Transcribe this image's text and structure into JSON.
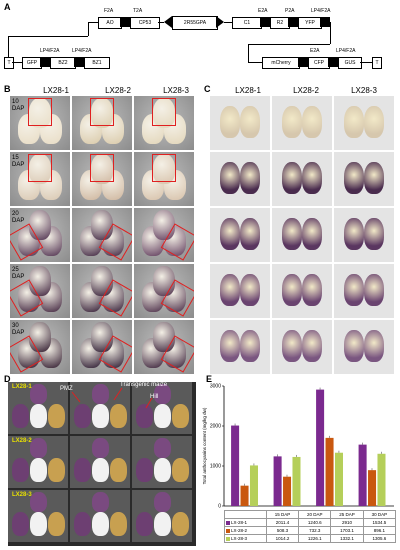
{
  "panel_labels": {
    "a": "A",
    "b": "B",
    "c": "C",
    "d": "D",
    "e": "E"
  },
  "construct": {
    "top_tags": [
      "F2A",
      "T2A",
      "E2A",
      "P2A",
      "LP4/F2A"
    ],
    "top_boxes": [
      "AO",
      "CP53",
      "2R55GPA",
      "C1",
      "R2",
      "YFP"
    ],
    "left_tags": [
      "LP4/F2A",
      "LP4/F2A"
    ],
    "left_boxes": [
      "T",
      "GFP",
      "BZ2",
      "BZ1"
    ],
    "right_tags": [
      "E2A",
      "LP4/F2A"
    ],
    "right_boxes": [
      "mCherry",
      "CFP",
      "GUS",
      "T"
    ]
  },
  "panel_b": {
    "columns": [
      "LX28-1",
      "LX28-2",
      "LX28-3"
    ],
    "rows": [
      "10 DAP",
      "15 DAP",
      "20 DAP",
      "25 DAP",
      "30 DAP"
    ]
  },
  "panel_c": {
    "columns": [
      "LX28-1",
      "LX28-2",
      "LX28-3"
    ]
  },
  "panel_d": {
    "rows": [
      "LX28-1",
      "LX28-2",
      "LX28-3"
    ],
    "annotations": [
      "PMZ",
      "Transgenic maize",
      "Hill"
    ]
  },
  "chart_data": {
    "type": "bar",
    "categories": [
      "15 DAP",
      "20 DAP",
      "25 DAP",
      "30 DAP"
    ],
    "series": [
      {
        "name": "LX-28-1",
        "values": [
          2011.4,
          1240.6,
          2910,
          1534.5
        ],
        "color": "#7b2a8f"
      },
      {
        "name": "LX-28-2",
        "values": [
          508.3,
          732.3,
          1703.1,
          896.1
        ],
        "color": "#c9580f"
      },
      {
        "name": "LX-28-3",
        "values": [
          1014.2,
          1226.1,
          1332.1,
          1305.6
        ],
        "color": "#b5cf5a"
      }
    ],
    "ylabel": "Total anthocyanins content  (mg/kg dw)",
    "yticks": [
      0,
      1000,
      2000,
      3000
    ],
    "ylim": [
      0,
      3000
    ]
  }
}
